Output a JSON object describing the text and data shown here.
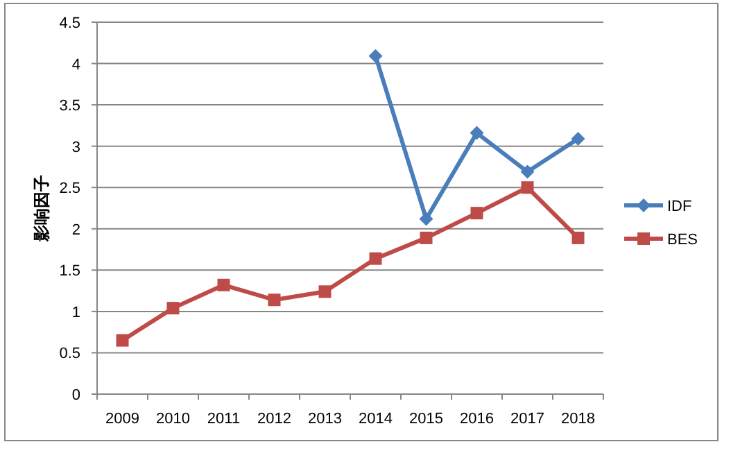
{
  "chart_data": {
    "type": "line",
    "ylabel": "影响因子",
    "categories": [
      "2009",
      "2010",
      "2011",
      "2012",
      "2013",
      "2014",
      "2015",
      "2016",
      "2017",
      "2018"
    ],
    "series": [
      {
        "name": "IDF",
        "color": "#4a7ebb",
        "marker": "diamond",
        "values": [
          null,
          null,
          null,
          null,
          null,
          4.09,
          2.12,
          3.16,
          2.69,
          3.09
        ]
      },
      {
        "name": "BES",
        "color": "#be4b48",
        "marker": "square",
        "values": [
          0.65,
          1.04,
          1.32,
          1.14,
          1.24,
          1.64,
          1.89,
          2.19,
          2.5,
          1.89
        ]
      }
    ],
    "ylim": [
      0,
      4.5
    ],
    "yticks": [
      0,
      0.5,
      1,
      1.5,
      2,
      2.5,
      3,
      3.5,
      4,
      4.5
    ],
    "grid": "y",
    "legend": "right",
    "line_style": "solid"
  }
}
